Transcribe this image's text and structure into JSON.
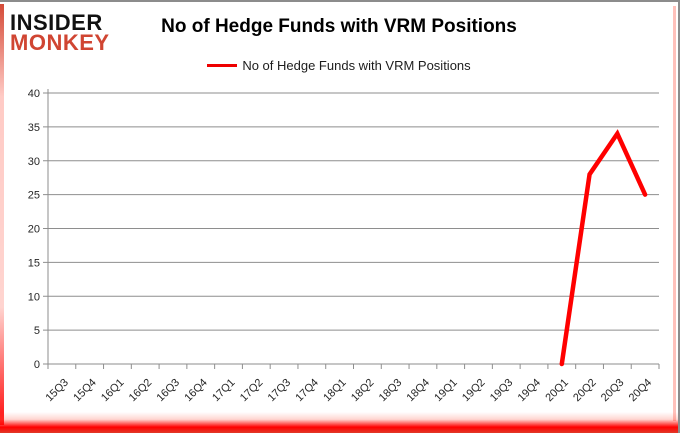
{
  "logo": {
    "line1": "INSIDER",
    "line2": "MONKEY"
  },
  "header": {
    "title": "No of Hedge Funds with VRM Positions"
  },
  "legend": {
    "label": "No of Hedge Funds with VRM Positions",
    "line_color": "#ff0000"
  },
  "colors": {
    "series_red": "#ff0000",
    "logo_red": "#d04532",
    "grid_grey": "#8e8e8e",
    "axis_text": "#262626",
    "border_grey": "#8c8c8c"
  },
  "chart_data": {
    "type": "line",
    "title": "No of Hedge Funds with VRM Positions",
    "categories": [
      "15Q3",
      "15Q4",
      "16Q1",
      "16Q2",
      "16Q3",
      "16Q4",
      "17Q1",
      "17Q2",
      "17Q3",
      "17Q4",
      "18Q1",
      "18Q2",
      "18Q3",
      "18Q4",
      "19Q1",
      "19Q2",
      "19Q3",
      "19Q4",
      "20Q1",
      "20Q2",
      "20Q3",
      "20Q4"
    ],
    "series": [
      {
        "name": "No of Hedge Funds with VRM Positions",
        "color": "#ff0000",
        "values": [
          null,
          null,
          null,
          null,
          null,
          null,
          null,
          null,
          null,
          null,
          null,
          null,
          null,
          null,
          null,
          null,
          null,
          null,
          0,
          28,
          34,
          25
        ]
      }
    ],
    "xlabel": "",
    "ylabel": "",
    "ylim": [
      0,
      40
    ],
    "ytick_step": 5,
    "grid": true,
    "legend_position": "top",
    "x_label_rotation": -45
  }
}
